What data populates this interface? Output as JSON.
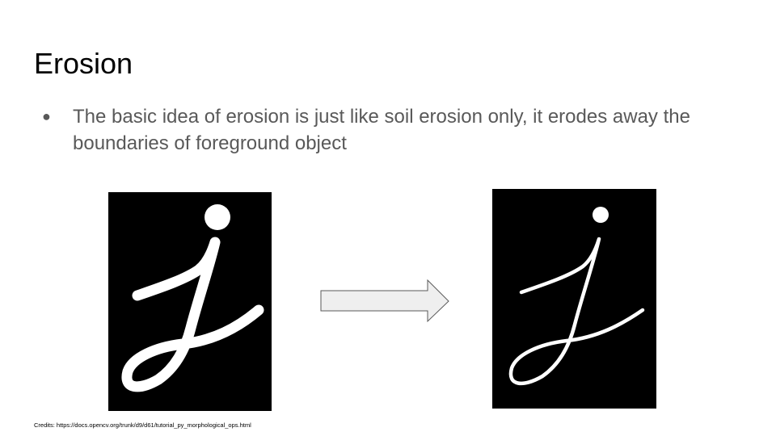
{
  "slide": {
    "title": "Erosion",
    "bullets": [
      "The basic idea of erosion is just like soil erosion only, it erodes away the boundaries of foreground object"
    ],
    "credits": "Credits: https://docs.opencv.org/trunk/d9/d61/tutorial_py_morphological_ops.html"
  },
  "colors": {
    "title_text": "#000000",
    "body_text": "#595959",
    "image_background": "#000000",
    "glyph": "#ffffff",
    "arrow_fill": "#efefef",
    "arrow_stroke": "#595959"
  },
  "icons": {
    "bullet": "bullet-dot",
    "arrow": "right-arrow"
  }
}
